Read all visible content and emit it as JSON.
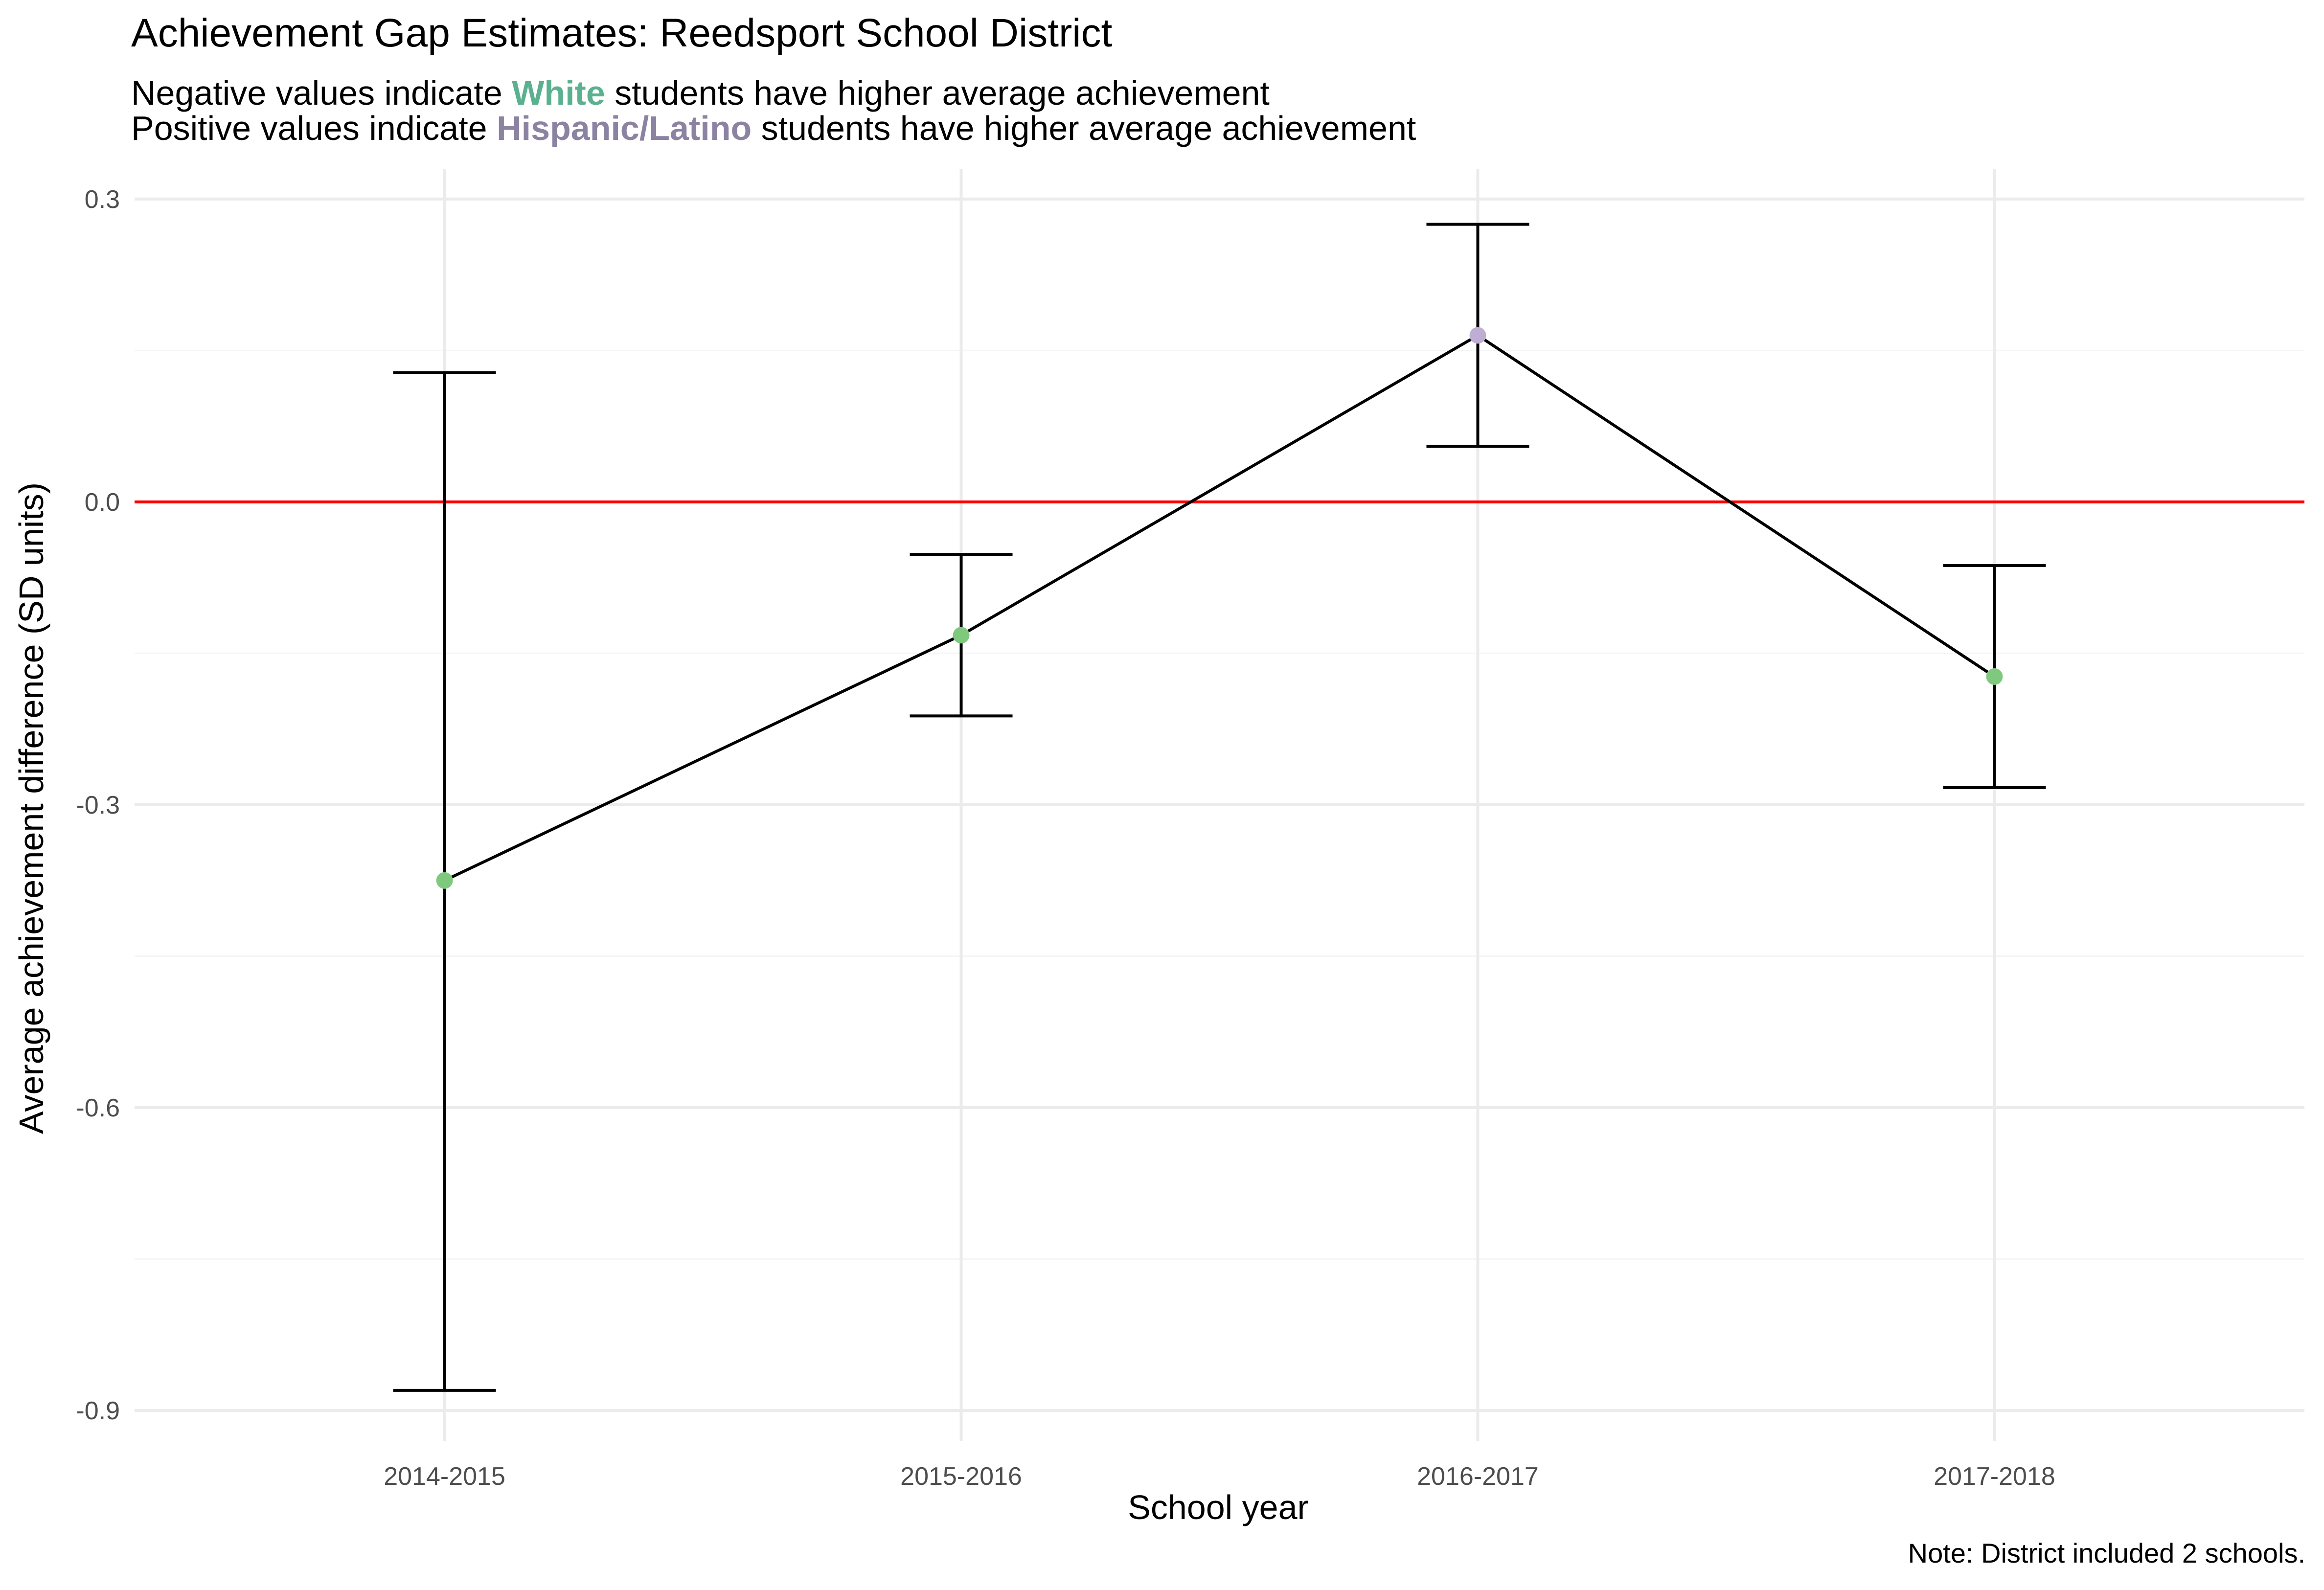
{
  "chart_data": {
    "type": "line",
    "title": "Achievement Gap Estimates: Reedsport School District",
    "subtitle": {
      "line1": {
        "before": "Negative values indicate ",
        "highlight": "White",
        "after": " students have higher average achievement"
      },
      "line2": {
        "before": "Positive values indicate ",
        "highlight": "Hispanic/Latino",
        "after": " students have higher average achievement"
      }
    },
    "caption": "Note: District included 2 schools.",
    "xlabel": "School year",
    "ylabel": "Average achievement difference (SD units)",
    "categories": [
      "2014-2015",
      "2015-2016",
      "2016-2017",
      "2017-2018"
    ],
    "series": [
      {
        "values": [
          -0.375,
          -0.132,
          0.165,
          -0.173
        ],
        "lower": [
          -0.88,
          -0.212,
          0.055,
          -0.283
        ],
        "upper": [
          0.128,
          -0.052,
          0.275,
          -0.063
        ]
      }
    ],
    "yticks": [
      0.3,
      0.0,
      -0.3,
      -0.6,
      -0.9
    ],
    "ytick_labels": [
      "0.3",
      "0.0",
      "-0.3",
      "-0.6",
      "-0.9"
    ],
    "ylim": [
      -0.93,
      0.33
    ],
    "reference_line": 0.0,
    "grid": true,
    "colors": {
      "white_group": "#5bb08f",
      "hispanic_group": "#8c83a3",
      "point_negative": "#7fc97f",
      "point_positive": "#beaed4",
      "reference_line": "#ff0000",
      "line": "#000000",
      "grid_major": "#ebebeb",
      "grid_minor": "#f5f5f5"
    }
  }
}
